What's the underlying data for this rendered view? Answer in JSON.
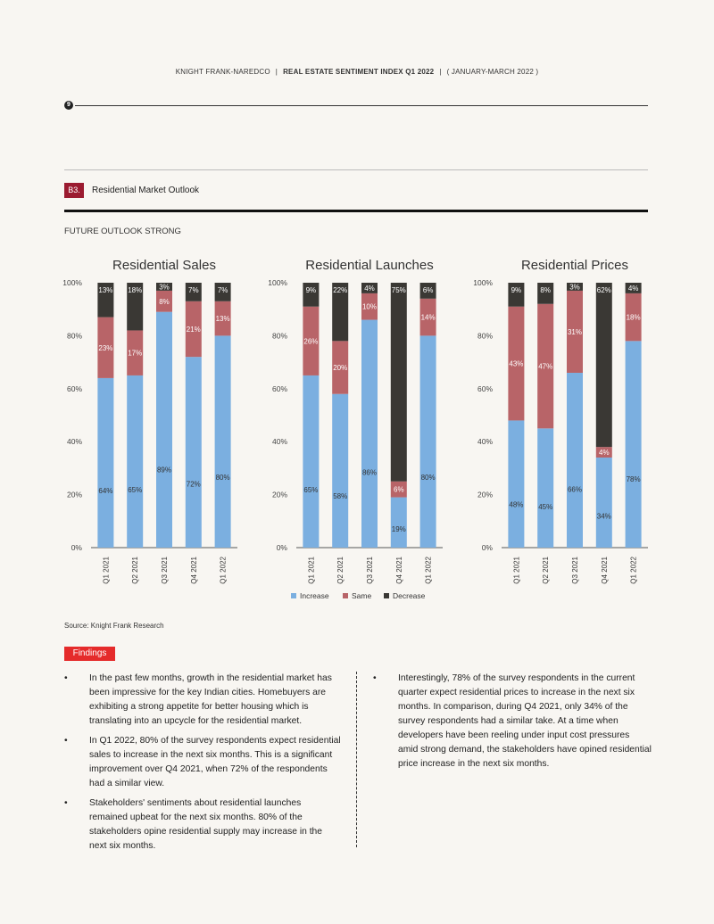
{
  "header": {
    "brand": "KNIGHT FRANK-NAREDCO",
    "report": "REAL ESTATE SENTIMENT INDEX Q1 2022",
    "period": "( JANUARY-MARCH 2022 )",
    "sep": "|"
  },
  "page_number": "9",
  "section": {
    "tag": "B3.",
    "title": "Residential Market Outlook"
  },
  "subtitle": "FUTURE OUTLOOK STRONG",
  "source": "Source: Knight Frank Research",
  "findings_label": "Findings",
  "findings_col1": [
    "In the past few months, growth in the residential market has been impressive for the key Indian cities. Homebuyers are exhibiting a strong appetite for better housing which is translating into an upcycle for the residential market.",
    "In Q1 2022, 80% of the survey respondents expect residential sales to increase in the next six months. This is a significant improvement over Q4 2021, when 72% of the respondents had a similar view.",
    "Stakeholders' sentiments about residential launches remained upbeat for the next six months. 80% of the stakeholders opine residential supply may increase in the next six months."
  ],
  "findings_col2": [
    "Interestingly, 78% of the survey respondents in the current quarter expect residential prices to increase in the next six months. In comparison, during Q4 2021, only 34% of the survey respondents had a similar take. At a time when developers have been reeling under input cost pressures amid strong demand, the stakeholders have opined residential price increase in the next six months."
  ],
  "bullet": "•",
  "colors": {
    "increase": "#7bafe0",
    "same": "#b86468",
    "decrease": "#3a3834",
    "accent": "#9b1b30",
    "findings": "#e52b2b"
  },
  "chart_data": [
    {
      "type": "bar",
      "stacked": true,
      "title": "Residential Sales",
      "categories": [
        "Q1 2021",
        "Q2 2021",
        "Q3 2021",
        "Q4 2021",
        "Q1 2022"
      ],
      "ylim": [
        0,
        100
      ],
      "yticks": [
        "0%",
        "20%",
        "40%",
        "60%",
        "80%",
        "100%"
      ],
      "series": [
        {
          "name": "Increase",
          "values": [
            64,
            65,
            89,
            72,
            80
          ]
        },
        {
          "name": "Same",
          "values": [
            23,
            17,
            8,
            21,
            13
          ]
        },
        {
          "name": "Decrease",
          "values": [
            13,
            18,
            3,
            7,
            7
          ]
        }
      ]
    },
    {
      "type": "bar",
      "stacked": true,
      "title": "Residential Launches",
      "categories": [
        "Q1 2021",
        "Q2 2021",
        "Q3 2021",
        "Q4 2021",
        "Q1 2022"
      ],
      "ylim": [
        0,
        100
      ],
      "yticks": [
        "0%",
        "20%",
        "40%",
        "60%",
        "80%",
        "100%"
      ],
      "series": [
        {
          "name": "Increase",
          "values": [
            65,
            58,
            86,
            19,
            80
          ]
        },
        {
          "name": "Same",
          "values": [
            26,
            20,
            10,
            6,
            14
          ]
        },
        {
          "name": "Decrease",
          "values": [
            9,
            22,
            4,
            75,
            6
          ]
        }
      ]
    },
    {
      "type": "bar",
      "stacked": true,
      "title": "Residential Prices",
      "categories": [
        "Q1 2021",
        "Q2 2021",
        "Q3 2021",
        "Q4 2021",
        "Q1 2022"
      ],
      "ylim": [
        0,
        100
      ],
      "yticks": [
        "0%",
        "20%",
        "40%",
        "60%",
        "80%",
        "100%"
      ],
      "series": [
        {
          "name": "Increase",
          "values": [
            48,
            45,
            66,
            34,
            78
          ]
        },
        {
          "name": "Same",
          "values": [
            43,
            47,
            31,
            4,
            18
          ]
        },
        {
          "name": "Decrease",
          "values": [
            9,
            8,
            3,
            62,
            4
          ]
        }
      ]
    }
  ],
  "legend": [
    "Increase",
    "Same",
    "Decrease"
  ]
}
